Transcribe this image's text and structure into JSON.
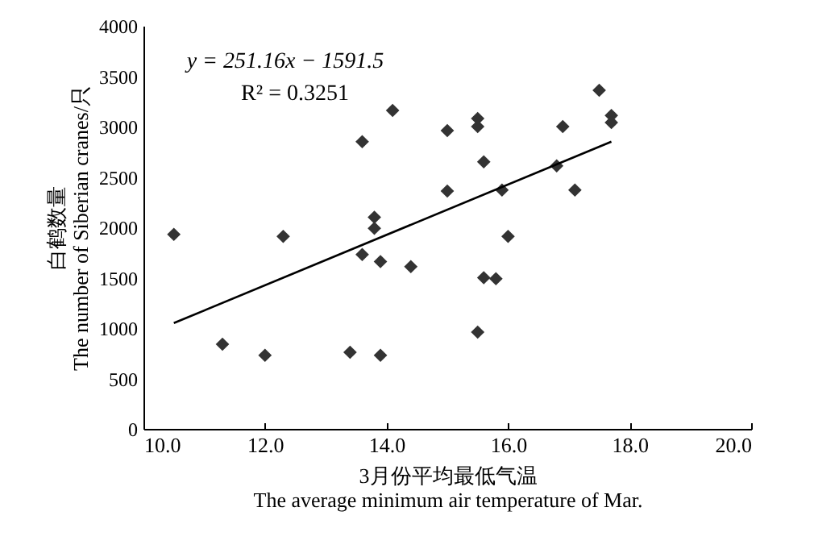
{
  "chart_data": {
    "type": "scatter",
    "xlabel": "3月份平均最低气温\nThe average minimum air temperature of Mar.",
    "ylabel": "白鹤数量\nThe number of Siberian cranes/只",
    "annotations": [
      "y = 251.16x − 1591.5",
      "R² = 0.3251"
    ],
    "xlim": [
      10,
      20
    ],
    "xticks": [
      {
        "value": 10,
        "label": "10.0"
      },
      {
        "value": 12,
        "label": "12.0"
      },
      {
        "value": 14,
        "label": "14.0"
      },
      {
        "value": 16,
        "label": "16.0"
      },
      {
        "value": 18,
        "label": "18.0"
      },
      {
        "value": 20,
        "label": "20.0"
      }
    ],
    "ylim": [
      0,
      4000
    ],
    "yticks": [
      0,
      500,
      1000,
      1500,
      2000,
      2500,
      3000,
      3500,
      4000
    ],
    "grid": false,
    "marker": "diamond",
    "series": [
      {
        "color": "#333333",
        "x": [
          10.5,
          11.3,
          12.0,
          12.3,
          13.4,
          13.6,
          13.6,
          13.8,
          13.8,
          13.9,
          13.9,
          14.1,
          14.4,
          15.0,
          15.0,
          15.5,
          15.5,
          15.6,
          15.5,
          15.6,
          15.8,
          15.9,
          16.0,
          16.8,
          16.9,
          17.1,
          17.5,
          17.7,
          17.7
        ],
        "values": [
          1930,
          840,
          730,
          1910,
          760,
          2850,
          1730,
          2100,
          1990,
          1660,
          730,
          3160,
          1610,
          2960,
          2360,
          3080,
          3000,
          2650,
          960,
          1500,
          1490,
          2370,
          1910,
          2610,
          3000,
          2370,
          3360,
          3110,
          3040
        ]
      },
      {
        "type": "line",
        "marker": "none",
        "color": "#000000",
        "x": [
          10.5,
          17.7
        ],
        "values": [
          1050,
          2850
        ]
      }
    ]
  }
}
